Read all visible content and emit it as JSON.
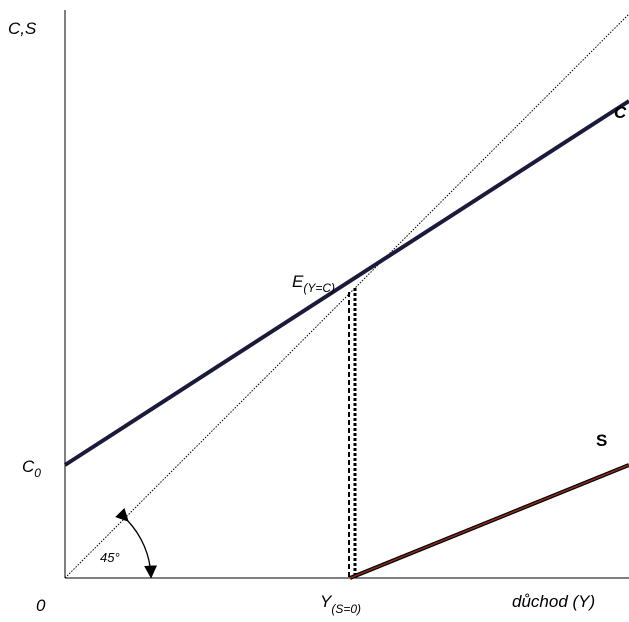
{
  "labels": {
    "y_axis": "C,S",
    "origin": "0",
    "c_zero": {
      "main": "C",
      "sub": "0"
    },
    "equilibrium": {
      "main": "E",
      "sub": "(Y=C)"
    },
    "income_zero_saving": {
      "main": "Y",
      "sub": "(S=0)"
    },
    "x_axis": "důchod (Y)",
    "consumption_line": "C",
    "saving_line": "S",
    "angle": "45°"
  }
}
